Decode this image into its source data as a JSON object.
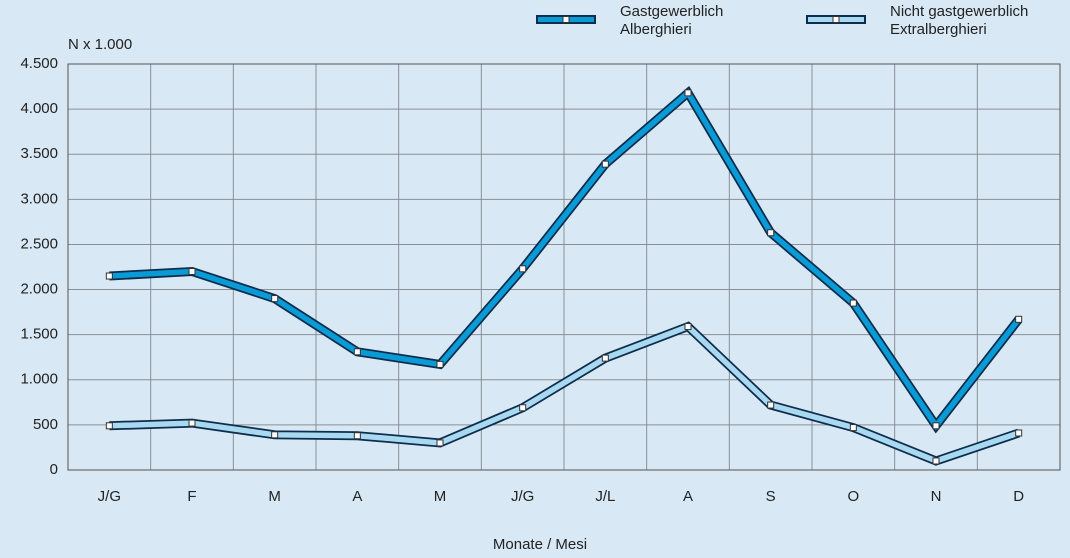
{
  "chart_data": {
    "type": "line",
    "y_label": "N x 1.000",
    "x_label": "Monate / Mesi",
    "categories": [
      "J/G",
      "F",
      "M",
      "A",
      "M",
      "J/G",
      "J/L",
      "A",
      "S",
      "O",
      "N",
      "D"
    ],
    "series": [
      {
        "name": "Gastgewerblich\nAlberghieri",
        "color": "#0a9bd6",
        "values": [
          2150,
          2200,
          1900,
          1310,
          1170,
          2230,
          3390,
          4180,
          2630,
          1850,
          490,
          1670
        ]
      },
      {
        "name": "Nicht gastgewerblich\nExtralberghieri",
        "color": "#a9d9f1",
        "values": [
          490,
          520,
          390,
          380,
          300,
          690,
          1240,
          1590,
          720,
          470,
          100,
          410
        ]
      }
    ],
    "ylim": [
      0,
      4500
    ],
    "yticks": [
      0,
      500,
      {
        "value": 1000,
        "label": "1.000"
      },
      {
        "value": 1500,
        "label": "1.500"
      },
      {
        "value": 2000,
        "label": "2.000"
      },
      {
        "value": 2500,
        "label": "2.500"
      },
      {
        "value": 3000,
        "label": "3.000"
      },
      {
        "value": 3500,
        "label": "3.500"
      },
      {
        "value": 4000,
        "label": "4.000"
      },
      {
        "value": 4500,
        "label": "4.500"
      }
    ],
    "grid": true
  }
}
